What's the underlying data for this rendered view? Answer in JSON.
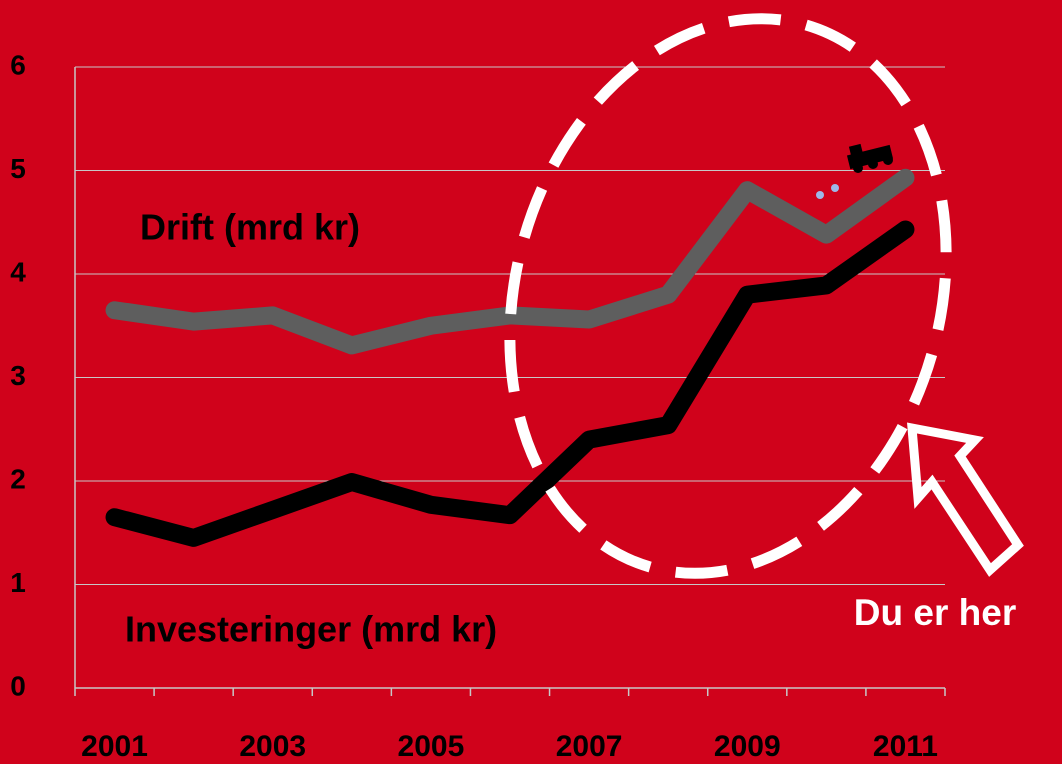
{
  "chart_data": {
    "type": "line",
    "categories": [
      "2001",
      null,
      "2003",
      null,
      "2005",
      null,
      "2007",
      null,
      "2009",
      null,
      "2011"
    ],
    "series": [
      {
        "name": "Drift (mrd kr)",
        "color": "#5e5e5e",
        "values": [
          3.65,
          3.54,
          3.6,
          3.31,
          3.5,
          3.6,
          3.56,
          3.8,
          4.81,
          4.38,
          4.93
        ]
      },
      {
        "name": "Investeringer (mrd kr)",
        "color": "#000000",
        "values": [
          1.65,
          1.45,
          1.72,
          1.99,
          1.77,
          1.67,
          2.4,
          2.54,
          3.8,
          3.89,
          4.43
        ]
      }
    ],
    "ylim": [
      0,
      6
    ],
    "yticks": [
      0,
      1,
      2,
      3,
      4,
      5,
      6
    ],
    "grid": true,
    "annotation": "Du er her"
  }
}
